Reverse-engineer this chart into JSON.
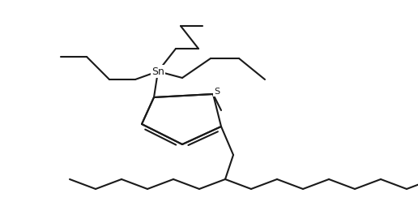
{
  "background": "#ffffff",
  "line_color": "#1a1a1a",
  "line_width": 1.5,
  "fig_width": 5.16,
  "fig_height": 2.54,
  "dpi": 100,
  "font_size_Sn": 9,
  "font_size_S": 8,
  "xlim": [
    0,
    516
  ],
  "ylim": [
    0,
    254
  ]
}
